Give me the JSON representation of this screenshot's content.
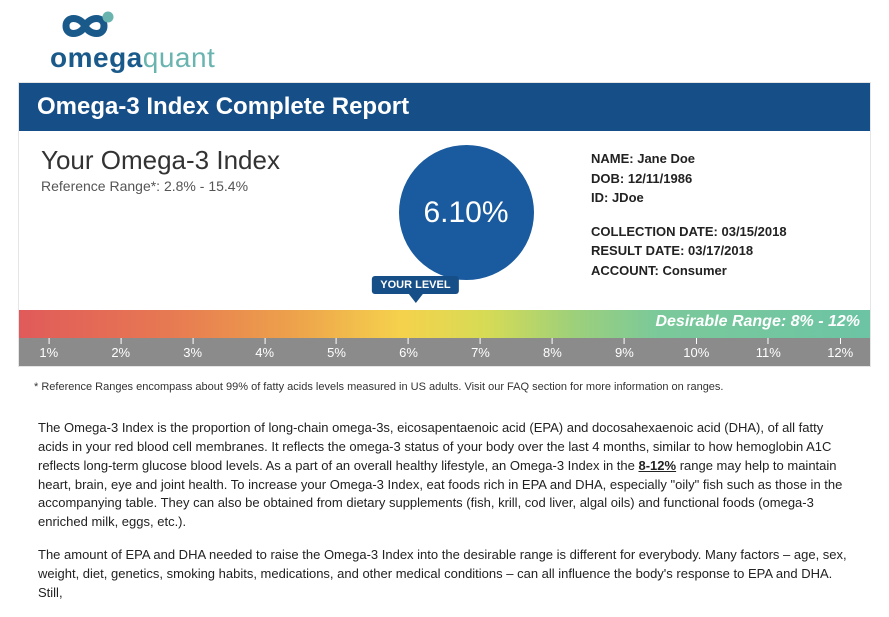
{
  "brand": {
    "a": "omega",
    "b": "quant",
    "logo_color_a": "#1a5a8a",
    "logo_color_b": "#6ab4b0"
  },
  "report_title": "Omega-3 Index Complete Report",
  "result": {
    "heading": "Your Omega-3 Index",
    "reference_label": "Reference Range*: ",
    "reference_value": "2.8% - 15.4%",
    "score": "6.10%",
    "score_percent": 6.1,
    "circle_color": "#1a5a9e"
  },
  "patient": {
    "name_label": "NAME: ",
    "name": "Jane Doe",
    "dob_label": "DOB: ",
    "dob": "12/11/1986",
    "id_label": "ID: ",
    "id": "JDoe",
    "collection_label": "COLLECTION DATE: ",
    "collection": "03/15/2018",
    "result_label": "RESULT DATE: ",
    "result": "03/17/2018",
    "account_label": "ACCOUNT: ",
    "account": "Consumer"
  },
  "marker": {
    "label": "YOUR LEVEL",
    "position_pct": 46.4
  },
  "range": {
    "desirable_text": "Desirable Range: 8% - 12%",
    "min": 1,
    "max": 12,
    "ticks": [
      "1%",
      "2%",
      "3%",
      "4%",
      "5%",
      "6%",
      "7%",
      "8%",
      "9%",
      "10%",
      "11%",
      "12%"
    ],
    "gradient_stops": [
      {
        "c": "#e05a5a",
        "p": 0
      },
      {
        "c": "#e77a52",
        "p": 18
      },
      {
        "c": "#eda14b",
        "p": 32
      },
      {
        "c": "#f5d24c",
        "p": 45
      },
      {
        "c": "#d6db55",
        "p": 55
      },
      {
        "c": "#9ed07a",
        "p": 65
      },
      {
        "c": "#7bc99a",
        "p": 75
      },
      {
        "c": "#6cc4a4",
        "p": 100
      }
    ],
    "tick_bg": "#8b8b8b"
  },
  "footnote": "* Reference Ranges encompass about 99% of fatty acids levels measured in US adults. Visit our FAQ section for more information on ranges.",
  "description": {
    "p1_a": "The Omega-3 Index is the proportion of long-chain omega-3s, eicosapentaenoic acid (EPA) and docosahexaenoic acid (DHA), of all fatty acids in your red blood cell membranes. It reflects the omega-3 status of your body over the last 4 months, similar to how hemoglobin A1C reflects long-term glucose blood levels. As a part of an overall healthy lifestyle, an Omega-3 Index in the ",
    "p1_u": "8-12%",
    "p1_b": " range may help to maintain heart, brain, eye and joint health. To increase your Omega-3 Index, eat foods rich in EPA and DHA, especially \"oily\" fish such as those in the accompanying table. They can also be obtained from dietary supplements (fish, krill, cod liver, algal oils) and functional foods (omega-3 enriched milk, eggs, etc.).",
    "p2": "The amount of EPA and DHA needed to raise the Omega-3 Index into the desirable range is different for everybody. Many factors – age, sex, weight, diet, genetics, smoking habits, medications, and other medical conditions – can all influence the body's response to EPA and DHA. Still,"
  },
  "colors": {
    "header_bg": "#164e87",
    "header_text": "#ffffff"
  }
}
